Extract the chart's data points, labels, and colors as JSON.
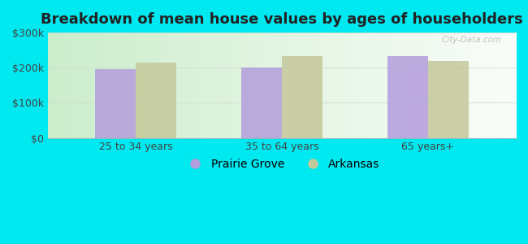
{
  "title": "Breakdown of mean house values by ages of householders",
  "categories": [
    "25 to 34 years",
    "35 to 64 years",
    "65 years+"
  ],
  "prairie_grove": [
    197000,
    200000,
    232000
  ],
  "arkansas": [
    215000,
    232000,
    218000
  ],
  "bar_color_prairie": "#b39ddb",
  "bar_color_arkansas": "#c5c89a",
  "ylim": [
    0,
    300000
  ],
  "yticks": [
    0,
    100000,
    200000,
    300000
  ],
  "ytick_labels": [
    "$0",
    "$100k",
    "$200k",
    "$300k"
  ],
  "legend_prairie": "Prairie Grove",
  "legend_arkansas": "Arkansas",
  "bg_outer": "#00e8f0",
  "watermark": "City-Data.com",
  "bar_width": 0.28,
  "title_fontsize": 13,
  "axis_fontsize": 9,
  "legend_fontsize": 10,
  "grad_left": "#c8e6c9",
  "grad_right": "#f0f8f0"
}
